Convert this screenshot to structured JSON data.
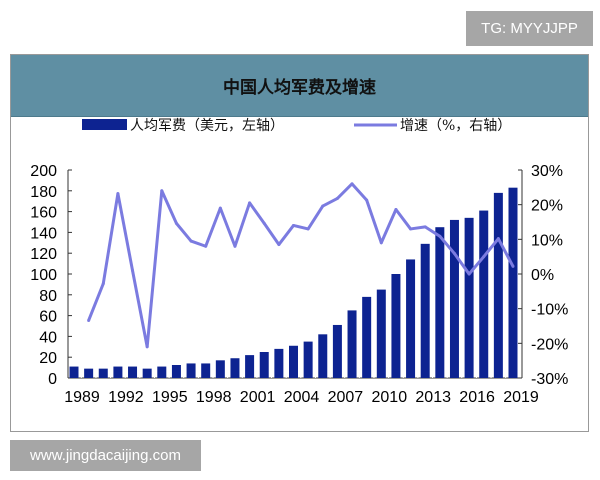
{
  "watermarks": {
    "top": "TG: MYYJJPP",
    "bottom": "www.jingdacaijing.com"
  },
  "chart_data": {
    "type": "bar+line",
    "title": "中国人均军费及增速",
    "legend": [
      {
        "name": "人均军费（美元，左轴）",
        "kind": "bar",
        "color": "#0d2391"
      },
      {
        "name": "增速（%，右轴）",
        "kind": "line",
        "color": "#7b7be0"
      }
    ],
    "legend_placement": "top",
    "grid": false,
    "categories": [
      1989,
      1990,
      1991,
      1992,
      1993,
      1994,
      1995,
      1996,
      1997,
      1998,
      1999,
      2000,
      2001,
      2002,
      2003,
      2004,
      2005,
      2006,
      2007,
      2008,
      2009,
      2010,
      2011,
      2012,
      2013,
      2014,
      2015,
      2016,
      2017,
      2018,
      2019
    ],
    "x_tick_labels": [
      "1989",
      "1992",
      "1995",
      "1998",
      "2001",
      "2004",
      "2007",
      "2010",
      "2013",
      "2016",
      "2019"
    ],
    "left_axis": {
      "ylim": [
        0,
        200
      ],
      "ticks": [
        "0",
        "20",
        "40",
        "60",
        "80",
        "100",
        "120",
        "140",
        "160",
        "180",
        "200"
      ]
    },
    "right_axis": {
      "ylim": [
        -30,
        30
      ],
      "ticks": [
        "-30%",
        "-20%",
        "-10%",
        "0%",
        "10%",
        "20%",
        "30%"
      ]
    },
    "series": [
      {
        "name": "人均军费（美元，左轴）",
        "axis": "left",
        "type": "bar",
        "values": [
          11,
          9,
          9,
          11,
          11,
          9,
          11,
          12.5,
          14,
          14,
          17,
          19,
          22,
          25,
          28,
          31,
          35,
          42,
          51,
          65,
          78,
          85,
          100,
          114,
          129,
          145,
          152,
          154,
          161,
          178,
          183
        ]
      },
      {
        "name": "增速（%，右轴）",
        "axis": "right",
        "type": "line",
        "values": [
          null,
          -13.4,
          -2.8,
          23.2,
          1,
          -21,
          24,
          14.6,
          9.5,
          8,
          19,
          8,
          20.5,
          14.6,
          8.5,
          14,
          13,
          19.6,
          21.8,
          26,
          21.3,
          9,
          18.6,
          13,
          13.6,
          10.9,
          5.9,
          0,
          5,
          10.2,
          2.2
        ]
      }
    ]
  }
}
